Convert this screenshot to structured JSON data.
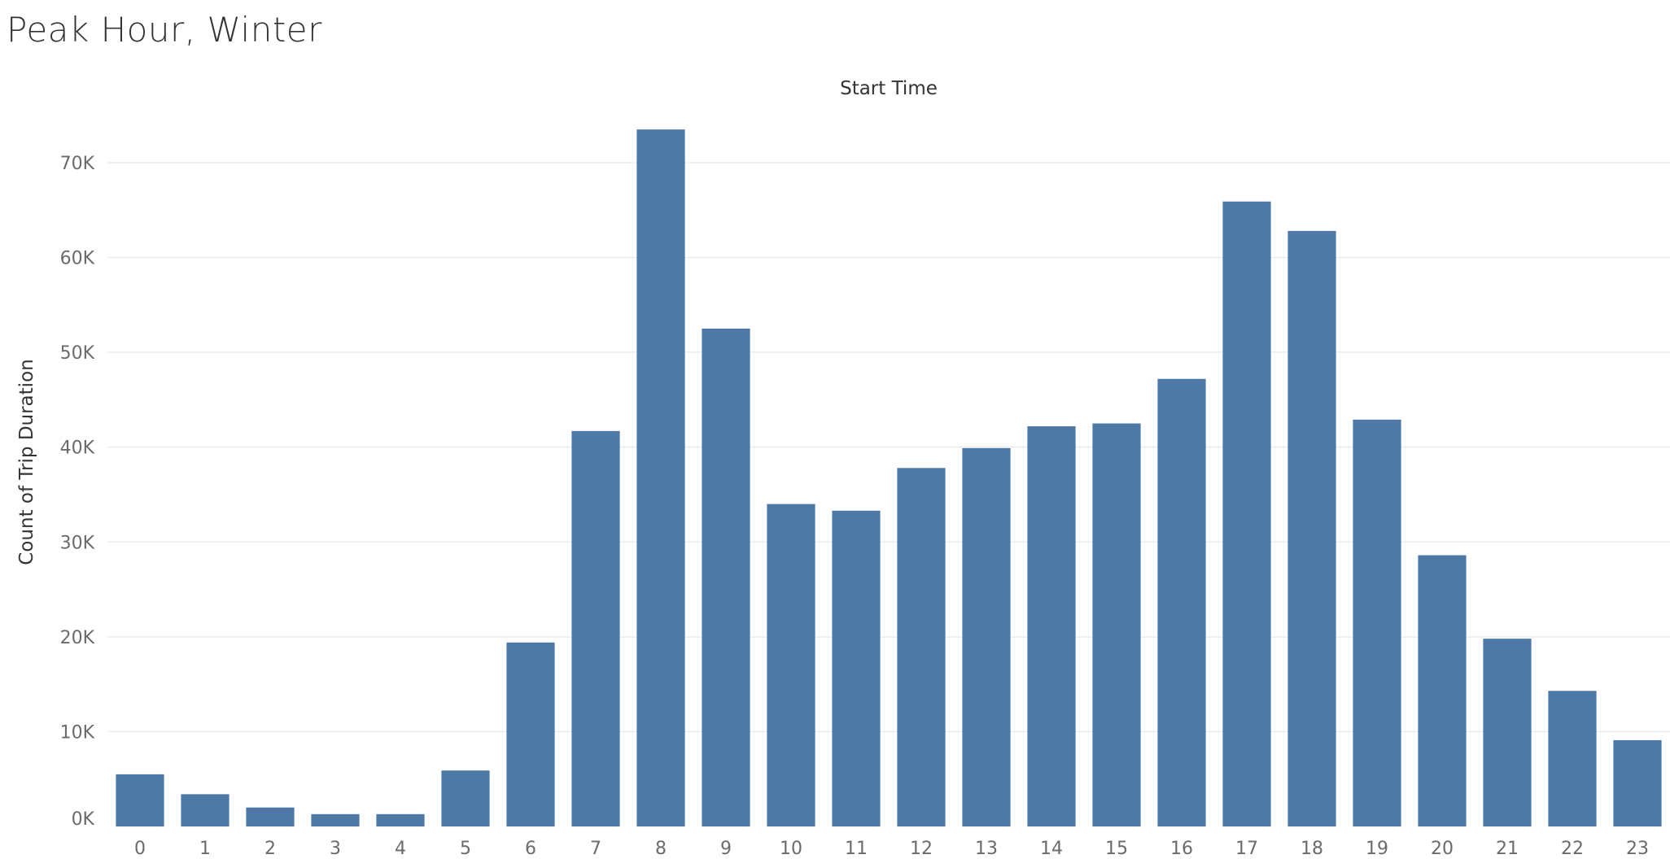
{
  "page": {
    "title": "Peak Hour, Winter"
  },
  "chart_data": {
    "type": "bar",
    "title": "Peak Hour, Winter",
    "xlabel": "Start Time",
    "ylabel": "Count of Trip Duration",
    "categories": [
      "0",
      "1",
      "2",
      "3",
      "4",
      "5",
      "6",
      "7",
      "8",
      "9",
      "10",
      "11",
      "12",
      "13",
      "14",
      "15",
      "16",
      "17",
      "18",
      "19",
      "20",
      "21",
      "22",
      "23"
    ],
    "values": [
      5500,
      3400,
      2000,
      1300,
      1300,
      5900,
      19400,
      41700,
      73500,
      52500,
      34000,
      33300,
      37800,
      39900,
      42200,
      42500,
      47200,
      65900,
      62800,
      42900,
      28600,
      19800,
      14300,
      9100
    ],
    "ylim": [
      0,
      76000
    ],
    "yticks": [
      {
        "value": 0,
        "label": "0K"
      },
      {
        "value": 10000,
        "label": "10K"
      },
      {
        "value": 20000,
        "label": "20K"
      },
      {
        "value": 30000,
        "label": "30K"
      },
      {
        "value": 40000,
        "label": "40K"
      },
      {
        "value": 50000,
        "label": "50K"
      },
      {
        "value": 60000,
        "label": "60K"
      },
      {
        "value": 70000,
        "label": "70K"
      }
    ],
    "grid": true,
    "bar_color": "#4e79a7",
    "axis_title_position": "top"
  }
}
